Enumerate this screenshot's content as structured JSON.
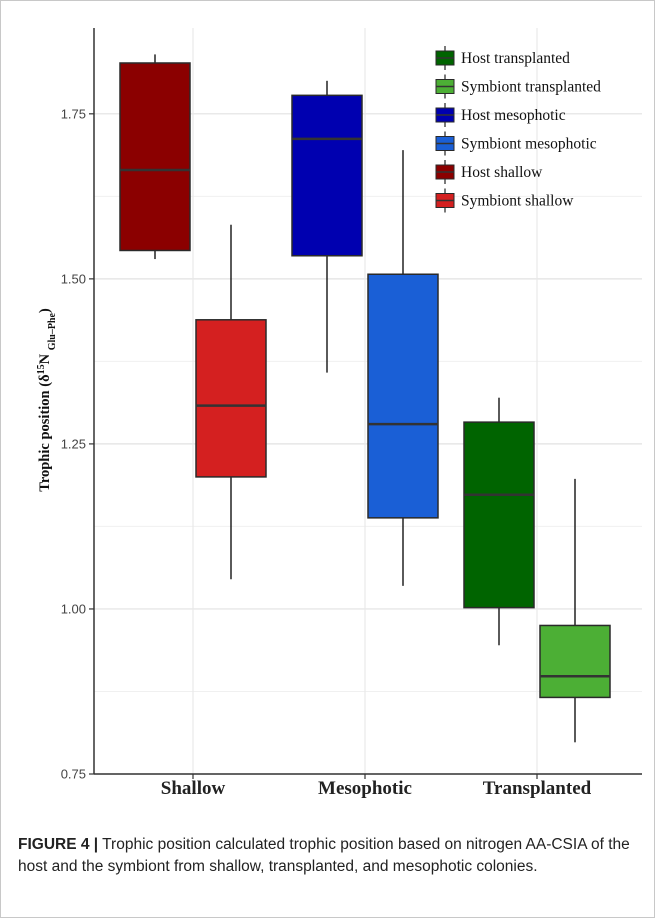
{
  "chart_data": {
    "type": "box",
    "categories": [
      "Shallow",
      "Mesophotic",
      "Transplanted"
    ],
    "ylabel_main": "Trophic position (δ",
    "ylabel_sup": "15",
    "ylabel_n": "N ",
    "ylabel_sub": "Glu–Phe",
    "ylabel_close": ")",
    "ylim": [
      0.75,
      1.88
    ],
    "yticks": [
      0.75,
      1.0,
      1.25,
      1.5,
      1.75
    ],
    "ytick_labels": [
      "0.75",
      "1.00",
      "1.25",
      "1.50",
      "1.75"
    ],
    "grid": true,
    "legend_position": "top-right",
    "series": [
      {
        "name": "Host shallow",
        "category": "Shallow",
        "offset": -0.5,
        "color": "#8b0000",
        "whisker_low": 1.53,
        "q1": 1.543,
        "median": 1.665,
        "q3": 1.827,
        "whisker_high": 1.84
      },
      {
        "name": "Symbiont shallow",
        "category": "Shallow",
        "offset": 0.5,
        "color": "#d42020",
        "whisker_low": 1.045,
        "q1": 1.2,
        "median": 1.308,
        "q3": 1.438,
        "whisker_high": 1.582
      },
      {
        "name": "Host mesophotic",
        "category": "Mesophotic",
        "offset": -0.5,
        "color": "#0000b0",
        "whisker_low": 1.358,
        "q1": 1.535,
        "median": 1.712,
        "q3": 1.778,
        "whisker_high": 1.8
      },
      {
        "name": "Symbiont mesophotic",
        "category": "Mesophotic",
        "offset": 0.5,
        "color": "#1a5fd6",
        "whisker_low": 1.035,
        "q1": 1.138,
        "median": 1.28,
        "q3": 1.507,
        "whisker_high": 1.695
      },
      {
        "name": "Host transplanted",
        "category": "Transplanted",
        "offset": -0.5,
        "color": "#006400",
        "whisker_low": 0.945,
        "q1": 1.002,
        "median": 1.173,
        "q3": 1.283,
        "whisker_high": 1.32
      },
      {
        "name": "Symbiont transplanted",
        "category": "Transplanted",
        "offset": 0.5,
        "color": "#4caf35",
        "whisker_low": 0.798,
        "q1": 0.866,
        "median": 0.898,
        "q3": 0.975,
        "whisker_high": 1.197
      }
    ],
    "legend_order": [
      "Host transplanted",
      "Symbiont transplanted",
      "Host mesophotic",
      "Symbiont mesophotic",
      "Host shallow",
      "Symbiont shallow"
    ]
  },
  "caption": {
    "lead": "FIGURE 4 |",
    "text": " Trophic position calculated trophic position based on nitrogen AA-CSIA of the host and the symbiont from shallow, transplanted, and mesophotic colonies."
  }
}
